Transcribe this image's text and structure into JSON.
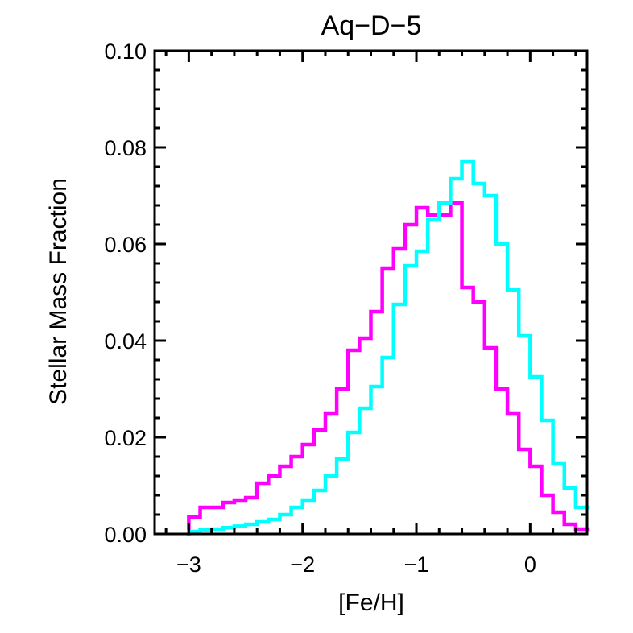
{
  "chart_data": {
    "type": "step",
    "title": "Aq−D−5",
    "xlabel": "[Fe/H]",
    "ylabel": "Stellar Mass Fraction",
    "xlim": [
      -3.3,
      0.5
    ],
    "ylim": [
      0.0,
      0.1
    ],
    "x_ticks": [
      {
        "value": -3,
        "label": "−3"
      },
      {
        "value": -2,
        "label": "−2"
      },
      {
        "value": -1,
        "label": "−1"
      },
      {
        "value": 0,
        "label": "0"
      }
    ],
    "y_ticks": [
      {
        "value": 0.0,
        "label": "0.00"
      },
      {
        "value": 0.02,
        "label": "0.02"
      },
      {
        "value": 0.04,
        "label": "0.04"
      },
      {
        "value": 0.06,
        "label": "0.06"
      },
      {
        "value": 0.08,
        "label": "0.08"
      },
      {
        "value": 0.1,
        "label": "0.10"
      }
    ],
    "bin_edges": [
      -3.0,
      -2.9,
      -2.8,
      -2.7,
      -2.6,
      -2.5,
      -2.4,
      -2.3,
      -2.2,
      -2.1,
      -2.0,
      -1.9,
      -1.8,
      -1.7,
      -1.6,
      -1.5,
      -1.4,
      -1.3,
      -1.2,
      -1.1,
      -1.0,
      -0.9,
      -0.8,
      -0.7,
      -0.6,
      -0.5,
      -0.4,
      -0.3,
      -0.2,
      -0.1,
      0.0,
      0.1,
      0.2,
      0.3,
      0.4,
      0.5
    ],
    "series": [
      {
        "name": "magenta",
        "color": "#ff00ff",
        "values": [
          0.0035,
          0.0055,
          0.0055,
          0.0065,
          0.007,
          0.0075,
          0.0105,
          0.012,
          0.014,
          0.016,
          0.0185,
          0.0215,
          0.025,
          0.03,
          0.038,
          0.0405,
          0.046,
          0.055,
          0.059,
          0.064,
          0.0675,
          0.066,
          0.066,
          0.0685,
          0.051,
          0.048,
          0.0385,
          0.03,
          0.025,
          0.0175,
          0.014,
          0.008,
          0.0045,
          0.002,
          0.001
        ]
      },
      {
        "name": "cyan",
        "color": "#00ffff",
        "values": [
          0.0005,
          0.0008,
          0.001,
          0.0013,
          0.0016,
          0.002,
          0.0025,
          0.003,
          0.004,
          0.0055,
          0.007,
          0.009,
          0.012,
          0.0155,
          0.021,
          0.026,
          0.0305,
          0.0365,
          0.0475,
          0.0555,
          0.0585,
          0.065,
          0.0685,
          0.0735,
          0.077,
          0.0725,
          0.07,
          0.06,
          0.0505,
          0.041,
          0.0325,
          0.0235,
          0.0145,
          0.0095,
          0.0055
        ]
      }
    ]
  }
}
